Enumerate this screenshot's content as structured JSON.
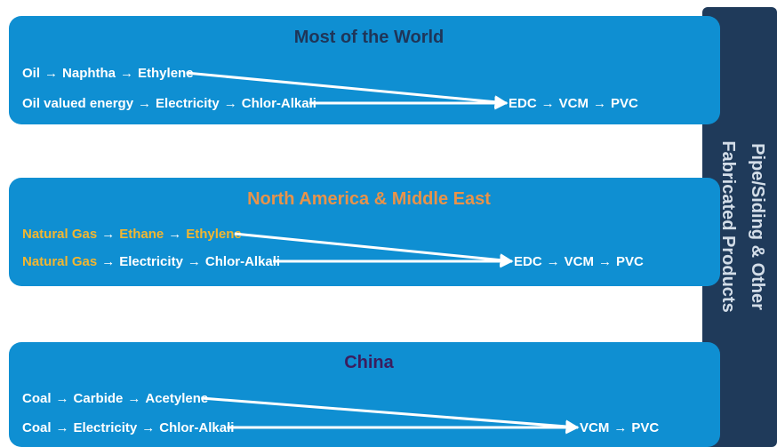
{
  "panels": [
    {
      "title": "Most of the World",
      "title_color": "#1f3558",
      "lines": [
        [
          "Oil",
          "→",
          "Naphtha",
          "→",
          "Ethylene"
        ],
        [
          "Oil valued energy",
          "→",
          "Electricity",
          "→",
          "Chlor-Alkali"
        ]
      ],
      "product": [
        "EDC",
        "→",
        "VCM",
        "→",
        "PVC"
      ]
    },
    {
      "title": "North America & Middle East",
      "title_color": "#e8934a",
      "lines": [
        [
          {
            "text": "Natural Gas",
            "color": "#f2b630"
          },
          "→",
          {
            "text": "Ethane",
            "color": "#f2b630"
          },
          "→",
          {
            "text": "Ethylene",
            "color": "#f2b630"
          }
        ],
        [
          {
            "text": "Natural Gas",
            "color": "#f2b630"
          },
          "→",
          "Electricity",
          "→",
          "Chlor-Alkali"
        ]
      ],
      "product": [
        "EDC",
        "→",
        "VCM",
        "→",
        "PVC"
      ]
    },
    {
      "title": "China",
      "title_color": "#3b1d5e",
      "lines": [
        [
          "Coal",
          "→",
          "Carbide",
          "→",
          "Acetylene"
        ],
        [
          "Coal",
          "→",
          "Electricity",
          "→",
          "Chlor-Alkali"
        ]
      ],
      "product": [
        "VCM",
        "→",
        "PVC"
      ]
    }
  ],
  "sidebar": {
    "lines": [
      "Pipe/Siding & Other",
      "Fabricated Products"
    ]
  }
}
